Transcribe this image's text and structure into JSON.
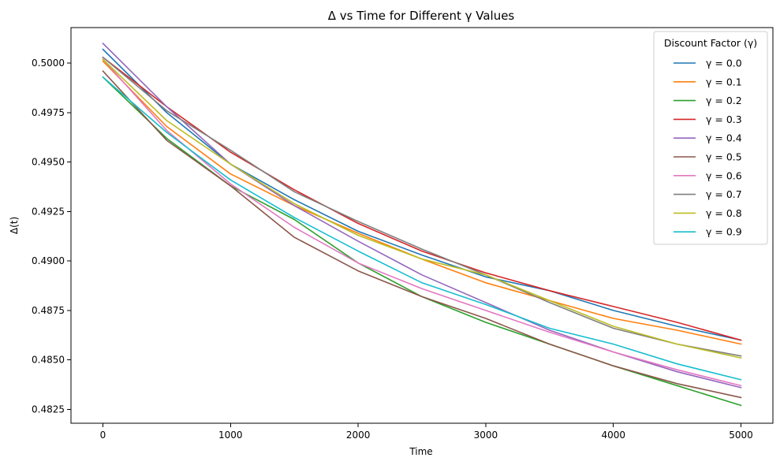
{
  "chart_data": {
    "type": "line",
    "title": "Δ vs Time for Different γ Values",
    "xlabel": "Time",
    "ylabel": "Δ(t)",
    "x": [
      0,
      500,
      1000,
      1500,
      2000,
      2500,
      3000,
      3500,
      4000,
      4500,
      5000
    ],
    "xlim": [
      -250,
      5250
    ],
    "ylim": [
      0.4818,
      0.5018
    ],
    "xticks": [
      0,
      1000,
      2000,
      3000,
      4000,
      5000
    ],
    "yticks": [
      0.4825,
      0.485,
      0.4875,
      0.49,
      0.4925,
      0.495,
      0.4975,
      0.5
    ],
    "xtick_labels": [
      "0",
      "1000",
      "2000",
      "3000",
      "4000",
      "5000"
    ],
    "ytick_labels": [
      "0.4825",
      "0.4850",
      "0.4875",
      "0.4900",
      "0.4925",
      "0.4950",
      "0.4975",
      "0.5000"
    ],
    "grid": false,
    "legend": {
      "title": "Discount Factor (γ)",
      "placement": "top-right"
    },
    "series": [
      {
        "name": "γ = 0.0",
        "color": "#1f77b4",
        "values": [
          0.5007,
          0.4975,
          0.4949,
          0.4931,
          0.4915,
          0.4903,
          0.4892,
          0.4885,
          0.4875,
          0.4867,
          0.486
        ]
      },
      {
        "name": "γ = 0.1",
        "color": "#ff7f0e",
        "values": [
          0.5001,
          0.4968,
          0.4944,
          0.4928,
          0.4914,
          0.4901,
          0.4889,
          0.488,
          0.4871,
          0.4865,
          0.4858
        ]
      },
      {
        "name": "γ = 0.2",
        "color": "#2ca02c",
        "values": [
          0.4993,
          0.4962,
          0.4938,
          0.4921,
          0.4899,
          0.4882,
          0.4869,
          0.4858,
          0.4847,
          0.4837,
          0.4827
        ]
      },
      {
        "name": "γ = 0.3",
        "color": "#d62728",
        "values": [
          0.5003,
          0.4978,
          0.4955,
          0.4936,
          0.4919,
          0.4905,
          0.4894,
          0.4885,
          0.4877,
          0.4869,
          0.486
        ]
      },
      {
        "name": "γ = 0.4",
        "color": "#9467bd",
        "values": [
          0.501,
          0.4978,
          0.4949,
          0.4928,
          0.491,
          0.4893,
          0.4879,
          0.4865,
          0.4854,
          0.4844,
          0.4836
        ]
      },
      {
        "name": "γ = 0.5",
        "color": "#8c564b",
        "values": [
          0.4996,
          0.4961,
          0.4938,
          0.4912,
          0.4895,
          0.4882,
          0.4871,
          0.4858,
          0.4847,
          0.4838,
          0.4831
        ]
      },
      {
        "name": "γ = 0.6",
        "color": "#e377c2",
        "values": [
          0.5002,
          0.4966,
          0.4939,
          0.4917,
          0.4899,
          0.4886,
          0.4875,
          0.4864,
          0.4854,
          0.4845,
          0.4837
        ]
      },
      {
        "name": "γ = 0.7",
        "color": "#7f7f7f",
        "values": [
          0.5003,
          0.4976,
          0.4956,
          0.4935,
          0.492,
          0.4906,
          0.4893,
          0.4879,
          0.4866,
          0.4858,
          0.4852
        ]
      },
      {
        "name": "γ = 0.8",
        "color": "#bcbd22",
        "values": [
          0.5002,
          0.4971,
          0.4949,
          0.4929,
          0.4913,
          0.4901,
          0.4893,
          0.488,
          0.4867,
          0.4858,
          0.4851
        ]
      },
      {
        "name": "γ = 0.9",
        "color": "#17becf",
        "values": [
          0.4993,
          0.4965,
          0.4941,
          0.4922,
          0.4905,
          0.4889,
          0.4878,
          0.4866,
          0.4858,
          0.4848,
          0.484
        ]
      }
    ]
  }
}
